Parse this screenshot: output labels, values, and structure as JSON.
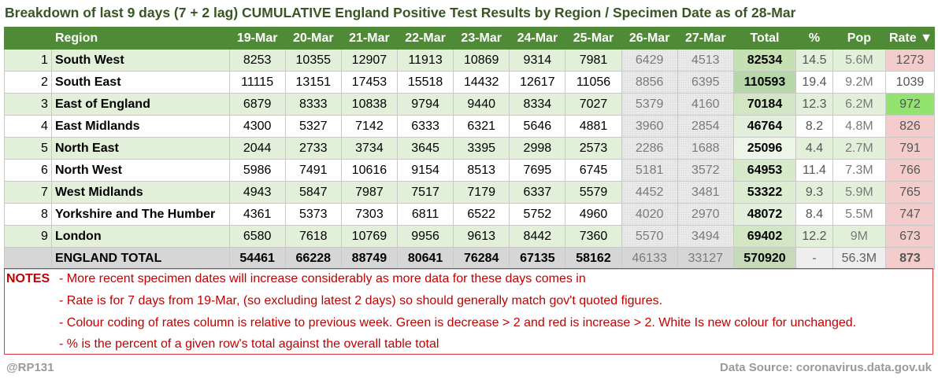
{
  "title": "Breakdown of last 9 days (7 + 2 lag) CUMULATIVE England Positive Test Results by Region / Specimen Date as of 28-Mar",
  "headers": {
    "region": "Region",
    "dates": [
      "19-Mar",
      "20-Mar",
      "21-Mar",
      "22-Mar",
      "23-Mar",
      "24-Mar",
      "25-Mar",
      "26-Mar",
      "27-Mar"
    ],
    "total": "Total",
    "pct": "%",
    "pop": "Pop",
    "rate": "Rate ▼"
  },
  "rows": [
    {
      "idx": "1",
      "region": "South West",
      "values": [
        "8253",
        "10355",
        "12907",
        "11913",
        "10869",
        "9314",
        "7981",
        "6429",
        "4513"
      ],
      "total": "82534",
      "pct": "14.5",
      "pop": "5.6M",
      "rate": "1273",
      "rate_color": "#f4cccc",
      "total_color": "#c6e0b4"
    },
    {
      "idx": "2",
      "region": "South East",
      "values": [
        "11115",
        "13151",
        "17453",
        "15518",
        "14432",
        "12617",
        "11056",
        "8856",
        "6395"
      ],
      "total": "110593",
      "pct": "19.4",
      "pop": "9.2M",
      "rate": "1039",
      "rate_color": "#ffffff",
      "total_color": "#b6d7a8"
    },
    {
      "idx": "3",
      "region": "East of England",
      "values": [
        "6879",
        "8333",
        "10838",
        "9794",
        "9440",
        "8334",
        "7027",
        "5379",
        "4160"
      ],
      "total": "70184",
      "pct": "12.3",
      "pop": "6.2M",
      "rate": "972",
      "rate_color": "#92e46f",
      "total_color": "#d2e6c4"
    },
    {
      "idx": "4",
      "region": "East Midlands",
      "values": [
        "4300",
        "5327",
        "7142",
        "6333",
        "6321",
        "5646",
        "4881",
        "3960",
        "2854"
      ],
      "total": "46764",
      "pct": "8.2",
      "pop": "4.8M",
      "rate": "826",
      "rate_color": "#f4cccc",
      "total_color": "#e2efda"
    },
    {
      "idx": "5",
      "region": "North East",
      "values": [
        "2044",
        "2733",
        "3734",
        "3645",
        "3395",
        "2998",
        "2573",
        "2286",
        "1688"
      ],
      "total": "25096",
      "pct": "4.4",
      "pop": "2.7M",
      "rate": "791",
      "rate_color": "#f4cccc",
      "total_color": "#edf5e8"
    },
    {
      "idx": "6",
      "region": "North West",
      "values": [
        "5986",
        "7491",
        "10616",
        "9154",
        "8513",
        "7695",
        "6745",
        "5181",
        "3572"
      ],
      "total": "64953",
      "pct": "11.4",
      "pop": "7.3M",
      "rate": "766",
      "rate_color": "#f4cccc",
      "total_color": "#d6e9c9"
    },
    {
      "idx": "7",
      "region": "West Midlands",
      "values": [
        "4943",
        "5847",
        "7987",
        "7517",
        "7179",
        "6337",
        "5579",
        "4452",
        "3481"
      ],
      "total": "53322",
      "pct": "9.3",
      "pop": "5.9M",
      "rate": "765",
      "rate_color": "#f4cccc",
      "total_color": "#dcecd1"
    },
    {
      "idx": "8",
      "region": "Yorkshire and The Humber",
      "values": [
        "4361",
        "5373",
        "7303",
        "6811",
        "6522",
        "5752",
        "4960",
        "4020",
        "2970"
      ],
      "total": "48072",
      "pct": "8.4",
      "pop": "5.5M",
      "rate": "747",
      "rate_color": "#f4cccc",
      "total_color": "#e2efda"
    },
    {
      "idx": "9",
      "region": "London",
      "values": [
        "6580",
        "7618",
        "10769",
        "9956",
        "9613",
        "8442",
        "7360",
        "5570",
        "3494"
      ],
      "total": "69402",
      "pct": "12.2",
      "pop": "9M",
      "rate": "673",
      "rate_color": "#f4cccc",
      "total_color": "#d2e6c4"
    }
  ],
  "summary": {
    "label": "ENGLAND TOTAL",
    "values": [
      "54461",
      "66228",
      "88749",
      "80641",
      "76284",
      "67135",
      "58162",
      "46133",
      "33127"
    ],
    "total": "570920",
    "pct": "-",
    "pop": "56.3M",
    "rate": "873",
    "rate_color": "#f4cccc"
  },
  "notes": {
    "label": "NOTES",
    "lines": [
      "- More recent specimen dates will increase considerably as more data for these days comes in",
      "- Rate is for 7 days from 19-Mar, (so excluding latest 2 days) so should generally match gov't quoted figures.",
      "- Colour coding of rates column is relative to previous week. Green is decrease > 2 and red is increase > 2. White Is new colour for unchanged.",
      "- % is the percent of a given row's total against the overall table total"
    ]
  },
  "footer": {
    "left": "@RP131",
    "right": "Data Source: coronavirus.data.gov.uk"
  },
  "colors": {
    "header_bg": "#4f8a36",
    "title": "#375623",
    "notes": "#c00000",
    "row_stripe": "#e2efd9",
    "summary_bg": "#d6d6d6"
  }
}
